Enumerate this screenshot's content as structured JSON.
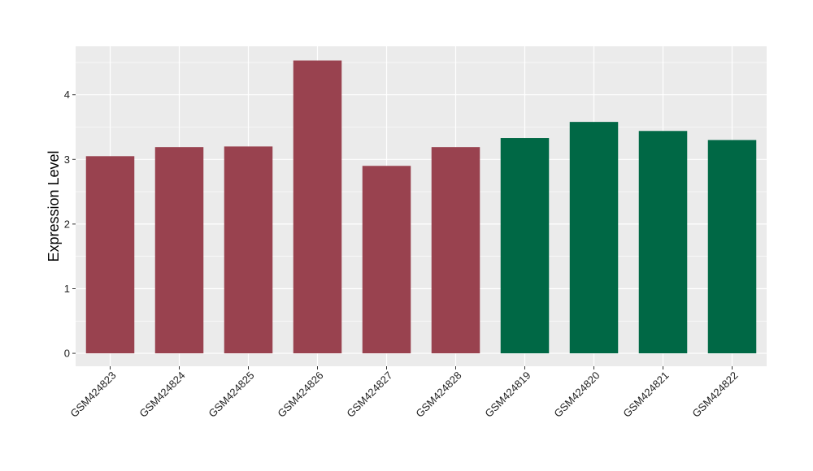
{
  "chart_data": {
    "type": "bar",
    "title": "",
    "xlabel": "",
    "ylabel": "Expression Level",
    "ylim": [
      -0.2,
      4.75
    ],
    "yticks": [
      0,
      1,
      2,
      3,
      4
    ],
    "categories": [
      "GSM424823",
      "GSM424824",
      "GSM424825",
      "GSM424826",
      "GSM424827",
      "GSM424828",
      "GSM424819",
      "GSM424820",
      "GSM424821",
      "GSM424822"
    ],
    "values": [
      3.05,
      3.19,
      3.2,
      4.53,
      2.9,
      3.19,
      3.33,
      3.58,
      3.44,
      3.3
    ],
    "bar_colors": [
      "#99424f",
      "#99424f",
      "#99424f",
      "#99424f",
      "#99424f",
      "#99424f",
      "#006845",
      "#006845",
      "#006845",
      "#006845"
    ],
    "panel_background": "#ebebeb",
    "grid_color": "#ffffff",
    "grid": true,
    "legend": "none"
  }
}
